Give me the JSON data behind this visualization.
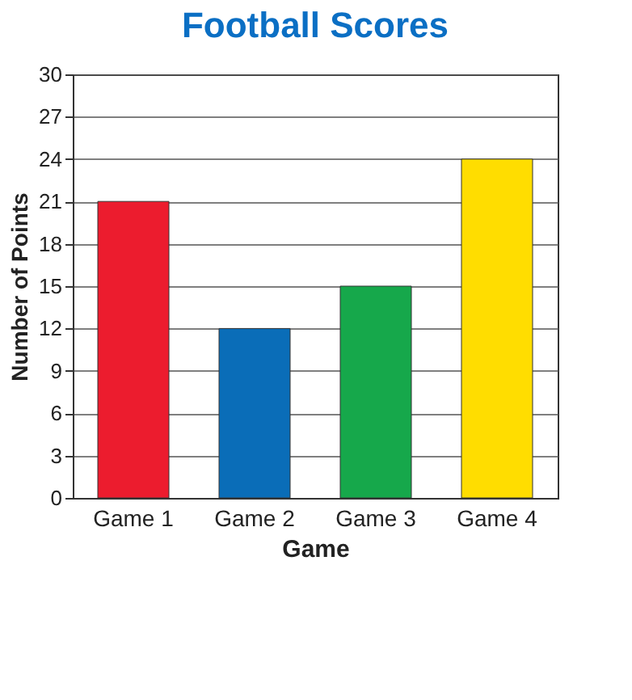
{
  "chart_data": {
    "type": "bar",
    "title": "Football Scores",
    "xlabel": "Game",
    "ylabel": "Number of Points",
    "categories": [
      "Game 1",
      "Game 2",
      "Game 3",
      "Game 4"
    ],
    "values": [
      21,
      12,
      15,
      24
    ],
    "colors": [
      "#ec1c2e",
      "#0a6db8",
      "#16a84b",
      "#ffdd00"
    ],
    "ylim": [
      0,
      30
    ],
    "yticks": [
      0,
      3,
      6,
      9,
      12,
      15,
      18,
      21,
      24,
      27,
      30
    ],
    "grid": "y"
  }
}
